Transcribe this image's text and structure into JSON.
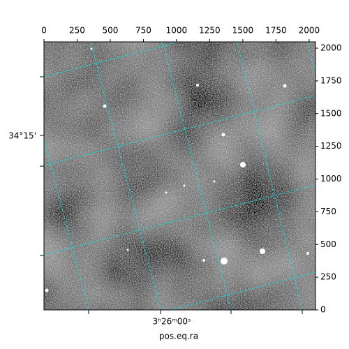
{
  "chart_data": {
    "type": "image",
    "xlabel": "pos.eq.ra",
    "ra_tick_label": "3ʰ26ᵐ00ˢ",
    "dec_tick_label": "34°15'",
    "xlim": [
      0,
      2048
    ],
    "xticks": [
      0,
      250,
      500,
      750,
      1000,
      1250,
      1500,
      1750,
      2000
    ],
    "ylim": [
      0,
      2048
    ],
    "yticks": [
      0,
      250,
      500,
      750,
      1000,
      1250,
      1500,
      1750,
      2000
    ],
    "grid": true,
    "grid_color": "#00e5e5"
  }
}
